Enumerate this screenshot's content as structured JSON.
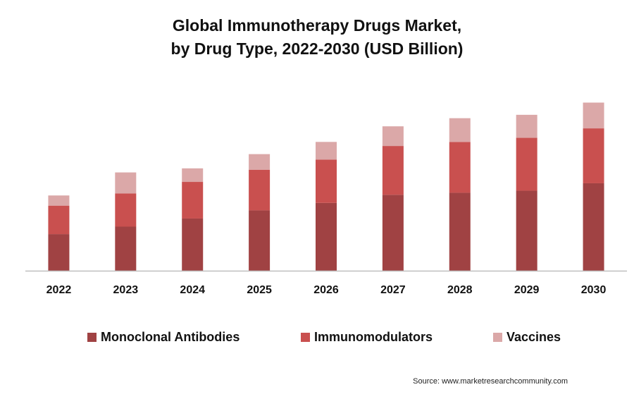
{
  "chart_data": {
    "type": "bar",
    "stacked": true,
    "title_lines": [
      "Global Immunotherapy Drugs Market,",
      "by Drug Type, 2022-2030 (USD Billion)"
    ],
    "categories": [
      "2022",
      "2023",
      "2024",
      "2025",
      "2026",
      "2027",
      "2028",
      "2029",
      "2030"
    ],
    "series": [
      {
        "name": "Monoclonal Antibodies",
        "color": "#a04243",
        "values": [
          54,
          65,
          77,
          89,
          100,
          112,
          115,
          118,
          129
        ]
      },
      {
        "name": "Immunomodulators",
        "color": "#c9504f",
        "values": [
          42,
          49,
          54,
          60,
          64,
          72,
          75,
          78,
          81
        ]
      },
      {
        "name": "Vaccines",
        "color": "#dba8a8",
        "values": [
          15,
          31,
          20,
          23,
          26,
          29,
          35,
          34,
          38
        ]
      }
    ],
    "ylim": [
      0,
      260
    ],
    "grid": false,
    "legend_position": "bottom"
  },
  "source": "Source: www.marketresearchcommunity.com"
}
